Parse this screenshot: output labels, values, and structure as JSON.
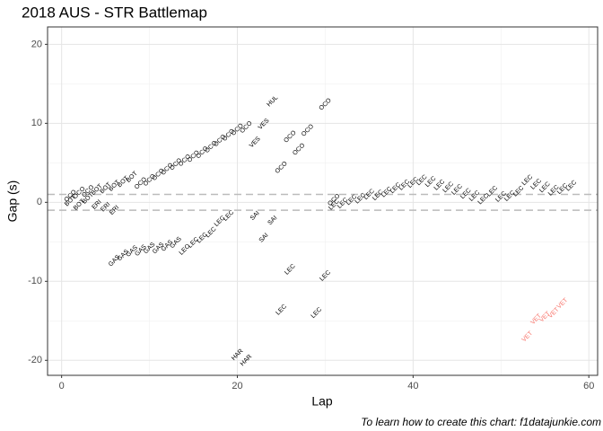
{
  "chart_data": {
    "type": "text_scatter",
    "title": "2018 AUS - STR Battlemap",
    "x_label": "Lap",
    "y_label": "Gap (s)",
    "caption": "To learn how to create this chart: f1datajunkie.com",
    "xlim": [
      -1.6,
      61.0
    ],
    "ylim": [
      -21.9,
      22.2
    ],
    "xticks": [
      0,
      20,
      40,
      60
    ],
    "yticks": [
      -20,
      -10,
      0,
      10,
      20
    ],
    "xminor": [
      10,
      30,
      50
    ],
    "yminor": [
      -15,
      -5,
      5,
      15
    ],
    "hlines": [
      1,
      -1
    ],
    "grid": true,
    "series": [
      {
        "name": "OCO",
        "color": "#000000",
        "x": [
          1,
          2,
          3,
          9,
          10,
          11,
          12,
          13,
          14,
          15,
          16,
          17,
          18,
          19,
          20,
          21,
          25,
          26,
          27,
          28,
          30,
          31
        ],
        "values": [
          0.8,
          1.2,
          1.4,
          2.4,
          2.8,
          3.5,
          4.2,
          4.8,
          5.3,
          5.8,
          6.3,
          7.0,
          7.8,
          8.5,
          9.2,
          9.5,
          4.4,
          8.3,
          6.7,
          9.1,
          12.4,
          0.3
        ]
      },
      {
        "name": "BOT",
        "color": "#000000",
        "x": [
          1,
          2,
          3,
          4,
          5,
          6,
          7,
          8
        ],
        "values": [
          0.2,
          -0.3,
          0.5,
          1.6,
          1.8,
          2.1,
          2.6,
          3.2
        ]
      },
      {
        "name": "ERI",
        "color": "#000000",
        "x": [
          4,
          5,
          6
        ],
        "values": [
          -0.3,
          -0.6,
          -1.0
        ]
      },
      {
        "name": "GAS",
        "color": "#000000",
        "x": [
          6,
          7,
          8,
          9,
          10,
          11,
          12,
          13
        ],
        "values": [
          -7.4,
          -6.7,
          -6.2,
          -6.1,
          -5.8,
          -5.8,
          -5.5,
          -5.1
        ]
      },
      {
        "name": "LEC",
        "color": "#000000",
        "x": [
          14,
          15,
          16,
          17,
          18,
          19,
          25,
          26,
          29,
          30,
          31,
          32,
          33,
          34,
          35,
          36,
          37,
          38,
          39,
          40,
          41,
          42,
          43,
          44,
          45,
          46,
          47,
          48,
          49,
          50,
          51,
          52,
          53,
          54,
          55,
          56,
          57,
          58
        ],
        "values": [
          -6.0,
          -5.1,
          -4.5,
          -3.8,
          -2.4,
          -1.7,
          -13.6,
          -8.5,
          -14.0,
          -9.3,
          -0.3,
          -0.1,
          0.3,
          0.5,
          1.0,
          0.9,
          1.3,
          1.8,
          2.2,
          2.5,
          2.8,
          2.6,
          2.2,
          1.9,
          1.6,
          1.1,
          0.8,
          0.4,
          1.4,
          0.7,
          0.8,
          1.4,
          2.8,
          2.3,
          1.9,
          1.5,
          1.7,
          2.1
        ]
      },
      {
        "name": "VES",
        "color": "#000000",
        "x": [
          22,
          23
        ],
        "values": [
          7.6,
          9.9
        ]
      },
      {
        "name": "HUL",
        "color": "#000000",
        "x": [
          24
        ],
        "values": [
          12.8
        ]
      },
      {
        "name": "SAI",
        "color": "#000000",
        "x": [
          22,
          23,
          24
        ],
        "values": [
          -1.7,
          -4.5,
          -2.3
        ]
      },
      {
        "name": "HAR",
        "color": "#000000",
        "x": [
          20,
          21
        ],
        "values": [
          -19.3,
          -20.0
        ]
      },
      {
        "name": "VET",
        "color": "#f8766d",
        "x": [
          53,
          54,
          55,
          56,
          57
        ],
        "values": [
          -17.0,
          -14.8,
          -14.5,
          -14.0,
          -12.8
        ]
      }
    ]
  }
}
